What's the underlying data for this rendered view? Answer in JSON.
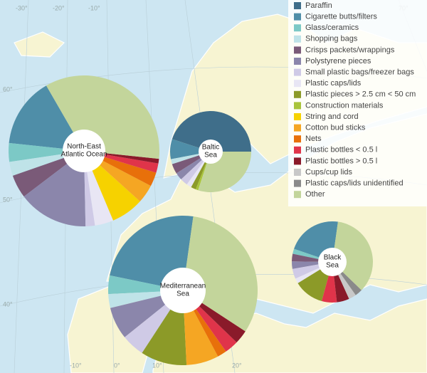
{
  "map": {
    "grid_labels": [
      "-30°",
      "-20°",
      "-10°",
      "70°",
      "60°",
      "50°",
      "40°",
      "-10°",
      "0°",
      "10°",
      "20°"
    ]
  },
  "legend": [
    {
      "name": "Paraffin",
      "color": "#3f6e8a"
    },
    {
      "name": "Cigarette butts/filters",
      "color": "#4f8ea8"
    },
    {
      "name": "Glass/ceramics",
      "color": "#7cc9c6"
    },
    {
      "name": "Shopping bags",
      "color": "#bfe3e8"
    },
    {
      "name": "Crisps packets/wrappings",
      "color": "#7a5a78"
    },
    {
      "name": "Polystyrene pieces",
      "color": "#8b86ab"
    },
    {
      "name": "Small plastic bags/freezer bags",
      "color": "#cfcae6"
    },
    {
      "name": "Plastic caps/lids",
      "color": "#e8e6f4"
    },
    {
      "name": "Plastic pieces > 2.5 cm < 50 cm",
      "color": "#8c9a28"
    },
    {
      "name": "Construction materials",
      "color": "#a9c43a"
    },
    {
      "name": "String and cord",
      "color": "#f6d200"
    },
    {
      "name": "Cotton bud sticks",
      "color": "#f5a623"
    },
    {
      "name": "Nets",
      "color": "#e8700a"
    },
    {
      "name": "Plastic bottles < 0.5 l",
      "color": "#e0344a"
    },
    {
      "name": "Plastic bottles > 0.5 l",
      "color": "#8a1a2a"
    },
    {
      "name": "Cups/cup lids",
      "color": "#c8c8c8"
    },
    {
      "name": "Plastic caps/lids unidentified",
      "color": "#8a8a8a"
    },
    {
      "name": "Other",
      "color": "#c3d59b"
    }
  ],
  "chart_data": [
    {
      "type": "pie",
      "label": [
        "North-East",
        "Atlantic Ocean"
      ],
      "values": [
        0,
        15,
        4,
        3,
        5,
        15,
        2,
        4,
        0,
        0,
        7,
        4,
        3,
        2,
        1,
        0,
        0,
        35
      ]
    },
    {
      "type": "pie",
      "label": [
        "Baltic",
        "Sea"
      ],
      "values": [
        45,
        8,
        0,
        2,
        4,
        3,
        3,
        2,
        2,
        1,
        0,
        0,
        0,
        0,
        0,
        0,
        0,
        30
      ]
    },
    {
      "type": "pie",
      "label": [
        "Mediterranean",
        "Sea"
      ],
      "values": [
        0,
        24,
        4,
        3,
        0,
        7,
        5,
        0,
        10,
        0,
        0,
        7,
        2,
        3,
        3,
        0,
        0,
        32
      ]
    },
    {
      "type": "pie",
      "label": [
        "Black",
        "Sea"
      ],
      "values": [
        0,
        22,
        2,
        0,
        3,
        3,
        4,
        2,
        12,
        0,
        0,
        0,
        0,
        6,
        5,
        3,
        3,
        35
      ]
    }
  ]
}
